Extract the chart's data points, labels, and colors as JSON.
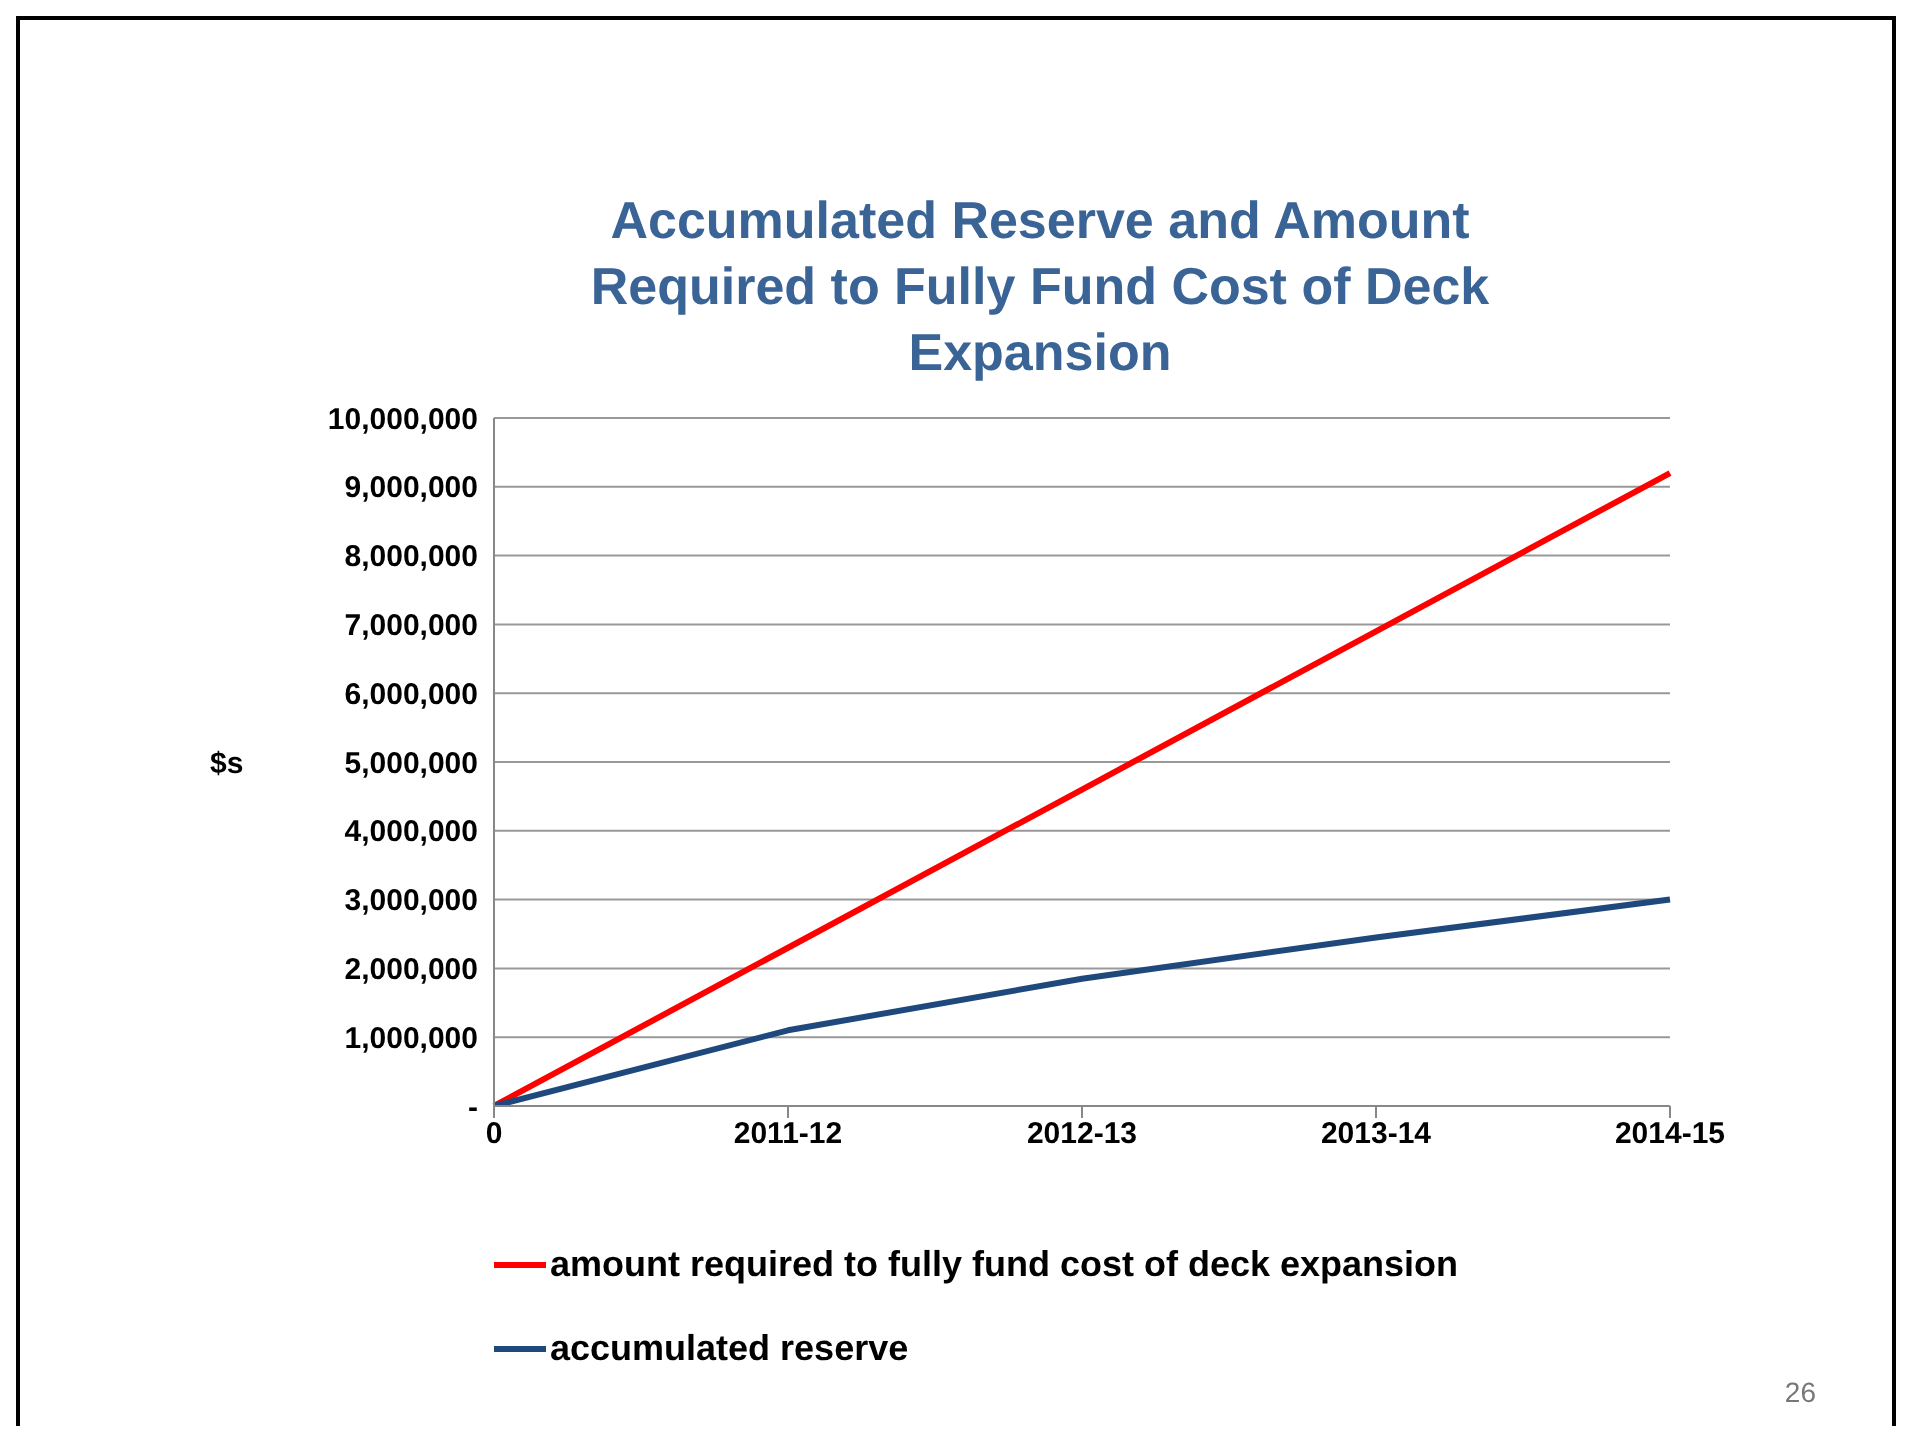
{
  "chart_data": {
    "type": "line",
    "title": "Accumulated Reserve and Amount Required to Fully Fund Cost of Deck Expansion",
    "ylabel": "$s",
    "categories": [
      "0",
      "2011-12",
      "2012-13",
      "2013-14",
      "2014-15"
    ],
    "series": [
      {
        "name": "amount required to fully fund cost of deck expansion",
        "color": "#ff0000",
        "values": [
          0,
          2300000,
          4600000,
          6900000,
          9200000
        ]
      },
      {
        "name": "accumulated reserve",
        "color": "#1f497d",
        "values": [
          0,
          1100000,
          1850000,
          2450000,
          3000000
        ]
      }
    ],
    "ylim": [
      0,
      10000000
    ],
    "yticks": [
      {
        "value": 0,
        "label": "-"
      },
      {
        "value": 1000000,
        "label": "1,000,000"
      },
      {
        "value": 2000000,
        "label": "2,000,000"
      },
      {
        "value": 3000000,
        "label": "3,000,000"
      },
      {
        "value": 4000000,
        "label": "4,000,000"
      },
      {
        "value": 5000000,
        "label": "5,000,000"
      },
      {
        "value": 6000000,
        "label": "6,000,000"
      },
      {
        "value": 7000000,
        "label": "7,000,000"
      },
      {
        "value": 8000000,
        "label": "8,000,000"
      },
      {
        "value": 9000000,
        "label": "9,000,000"
      },
      {
        "value": 10000000,
        "label": "10,000,000"
      }
    ],
    "grid": "y",
    "legend": "bottom",
    "marker": "none",
    "line_style": "solid",
    "annotations": [
      "26"
    ]
  }
}
